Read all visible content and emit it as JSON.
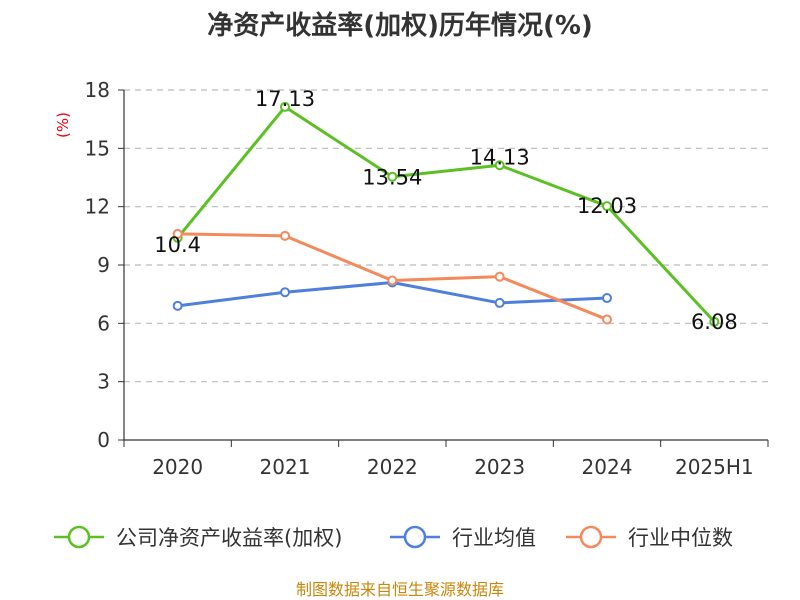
{
  "chart_data": {
    "type": "line",
    "title": "净资产收益率(加权)历年情况(%)",
    "y_unit": "(%)",
    "categories": [
      "2020",
      "2021",
      "2022",
      "2023",
      "2024",
      "2025H1"
    ],
    "y_ticks": [
      "0",
      "3",
      "6",
      "9",
      "12",
      "15",
      "18"
    ],
    "ylim": [
      0,
      18
    ],
    "grid": true,
    "legend_position": "bottom",
    "series": [
      {
        "name": "公司净资产收益率(加权)",
        "color": "#5cbf24",
        "values": [
          10.4,
          17.13,
          13.54,
          14.13,
          12.03,
          6.08
        ],
        "labels": [
          "10.4",
          "17.13",
          "13.54",
          "14.13",
          "12.03",
          "6.08"
        ]
      },
      {
        "name": "行业均值",
        "color": "#4e7fdb",
        "values": [
          6.9,
          7.6,
          8.1,
          7.05,
          7.3,
          null
        ]
      },
      {
        "name": "行业中位数",
        "color": "#f4895c",
        "values": [
          10.6,
          10.5,
          8.2,
          8.4,
          6.2,
          null
        ]
      }
    ]
  },
  "footer": {
    "source": "制图数据来自恒生聚源数据库"
  }
}
